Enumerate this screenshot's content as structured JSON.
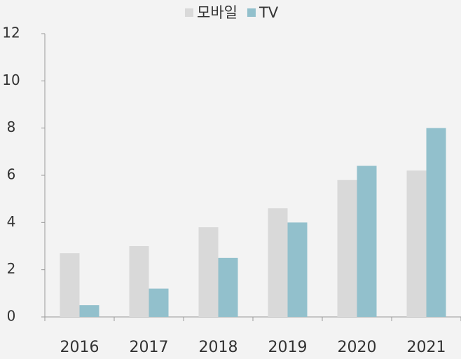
{
  "chart_data": {
    "type": "bar",
    "categories": [
      "2016",
      "2017",
      "2018",
      "2019",
      "2020",
      "2021"
    ],
    "series": [
      {
        "name": "모바일",
        "color": "#d9d9d9",
        "values": [
          2.7,
          3.0,
          3.8,
          4.6,
          5.8,
          6.2
        ]
      },
      {
        "name": "TV",
        "color": "#92c0cc",
        "values": [
          0.5,
          1.2,
          2.5,
          4.0,
          6.4,
          8.0
        ]
      }
    ],
    "ylim": [
      0,
      12
    ],
    "yticks": [
      0,
      2,
      4,
      6,
      8,
      10,
      12
    ],
    "grid": false,
    "legend": "top"
  }
}
